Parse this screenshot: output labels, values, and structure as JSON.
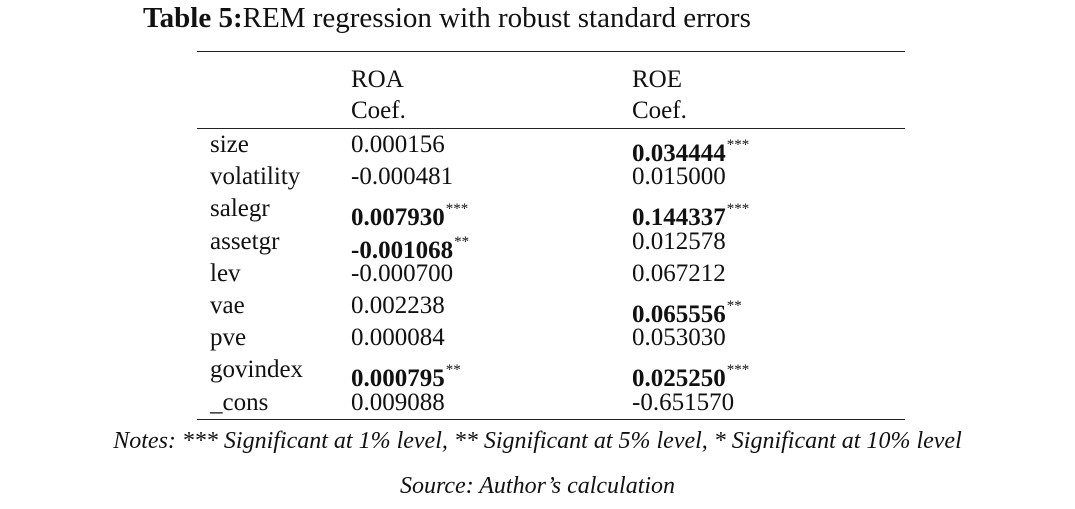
{
  "title": {
    "label": "Table 5:",
    "text": "REM regression with robust standard errors"
  },
  "headers": {
    "col2": {
      "line1": "ROA",
      "line2": "Coef."
    },
    "col3": {
      "line1": "ROE",
      "line2": "Coef."
    }
  },
  "rows": [
    {
      "var": "size",
      "roa": "0.000156",
      "roa_stars": "",
      "roa_bold": false,
      "roe": "0.034444",
      "roe_stars": "***",
      "roe_bold": true
    },
    {
      "var": "volatility",
      "roa": "-0.000481",
      "roa_stars": "",
      "roa_bold": false,
      "roe": "0.015000",
      "roe_stars": "",
      "roe_bold": false
    },
    {
      "var": "salegr",
      "roa": "0.007930",
      "roa_stars": "***",
      "roa_bold": true,
      "roe": "0.144337",
      "roe_stars": "***",
      "roe_bold": true
    },
    {
      "var": "assetgr",
      "roa": "-0.001068",
      "roa_stars": "**",
      "roa_bold": true,
      "roe": "0.012578",
      "roe_stars": "",
      "roe_bold": false
    },
    {
      "var": "lev",
      "roa": "-0.000700",
      "roa_stars": "",
      "roa_bold": false,
      "roe": "0.067212",
      "roe_stars": "",
      "roe_bold": false
    },
    {
      "var": "vae",
      "roa": "0.002238",
      "roa_stars": "",
      "roa_bold": false,
      "roe": "0.065556",
      "roe_stars": "**",
      "roe_bold": true
    },
    {
      "var": "pve",
      "roa": "0.000084",
      "roa_stars": "",
      "roa_bold": false,
      "roe": "0.053030",
      "roe_stars": "",
      "roe_bold": false
    },
    {
      "var": "govindex",
      "roa": "0.000795",
      "roa_stars": "**",
      "roa_bold": true,
      "roe": "0.025250",
      "roe_stars": "***",
      "roe_bold": true
    },
    {
      "var": "_cons",
      "roa": "0.009088",
      "roa_stars": "",
      "roa_bold": false,
      "roe": "-0.651570",
      "roe_stars": "",
      "roe_bold": false
    }
  ],
  "notes": "Notes: *** Significant at 1% level, ** Significant at 5% level, * Significant at 10% level",
  "source": "Source: Author’s calculation"
}
